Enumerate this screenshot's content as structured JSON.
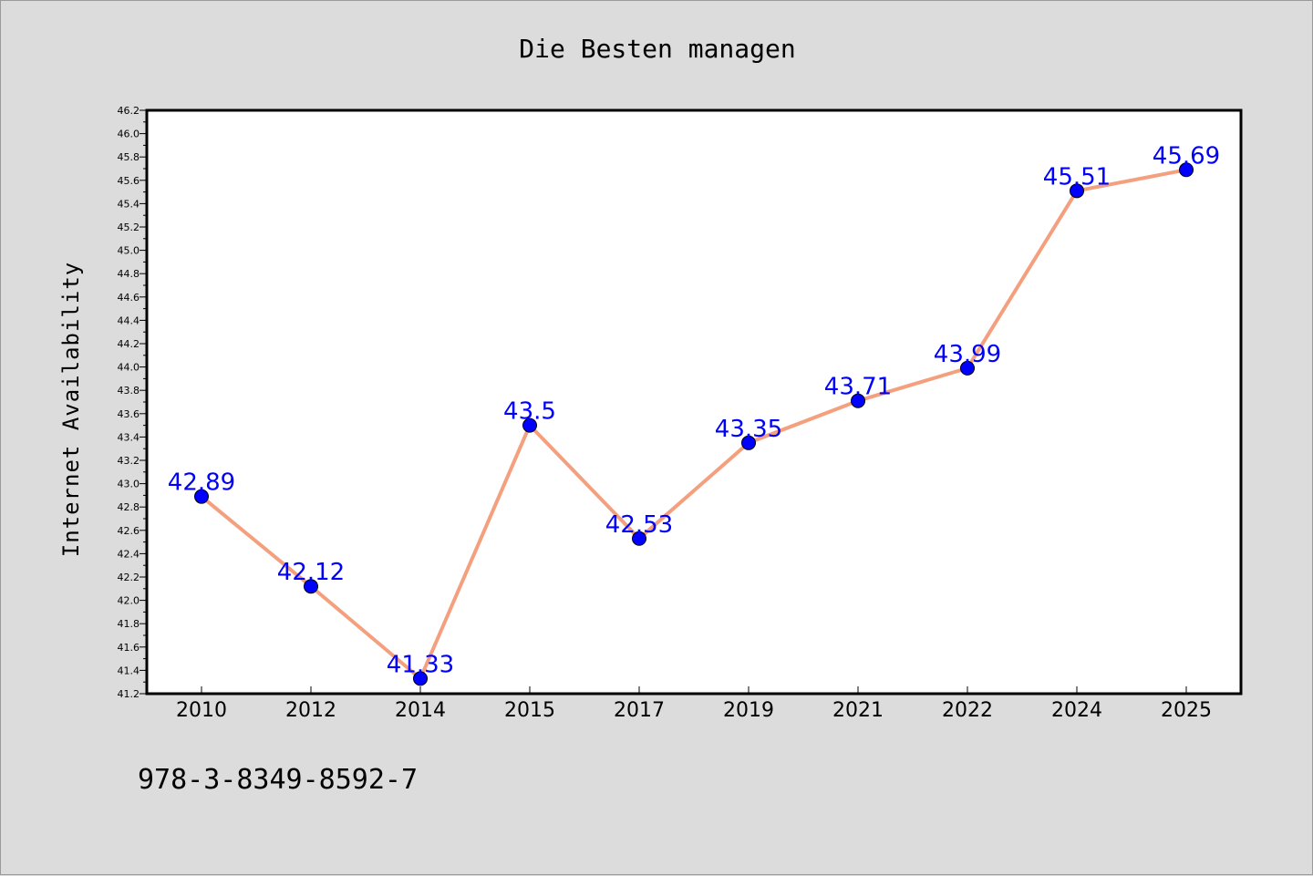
{
  "chart_data": {
    "type": "line",
    "title": "Die Besten managen",
    "ylabel": "Internet Availability",
    "xlabel": "",
    "footnote": "978-3-8349-8592-7",
    "categories": [
      "2010",
      "2012",
      "2014",
      "2015",
      "2017",
      "2019",
      "2021",
      "2022",
      "2024",
      "2025"
    ],
    "series": [
      {
        "values": [
          42.89,
          42.12,
          41.33,
          43.5,
          42.53,
          43.35,
          43.71,
          43.99,
          45.51,
          45.69
        ],
        "data_labels": [
          "42.89",
          "42.12",
          "41.33",
          "43.5",
          "42.53",
          "43.35",
          "43.71",
          "43.99",
          "45.51",
          "45.69"
        ]
      }
    ],
    "ylim": [
      41.2,
      46.2
    ],
    "yticks": [
      "41.2",
      "41.4",
      "41.6",
      "41.8",
      "42.0",
      "42.2",
      "42.4",
      "42.6",
      "42.8",
      "43.0",
      "43.2",
      "43.4",
      "43.6",
      "43.8",
      "44.0",
      "44.2",
      "44.4",
      "44.6",
      "44.8",
      "45.0",
      "45.2",
      "45.4",
      "45.6",
      "45.8",
      "46.0",
      "46.2"
    ],
    "grid": false,
    "legend": "none",
    "colors": {
      "line": "#f4a07e",
      "marker": "#0000ff",
      "label": "#0000ff",
      "plot_bg": "#ffffff",
      "page_bg": "#dcdcdc"
    }
  }
}
